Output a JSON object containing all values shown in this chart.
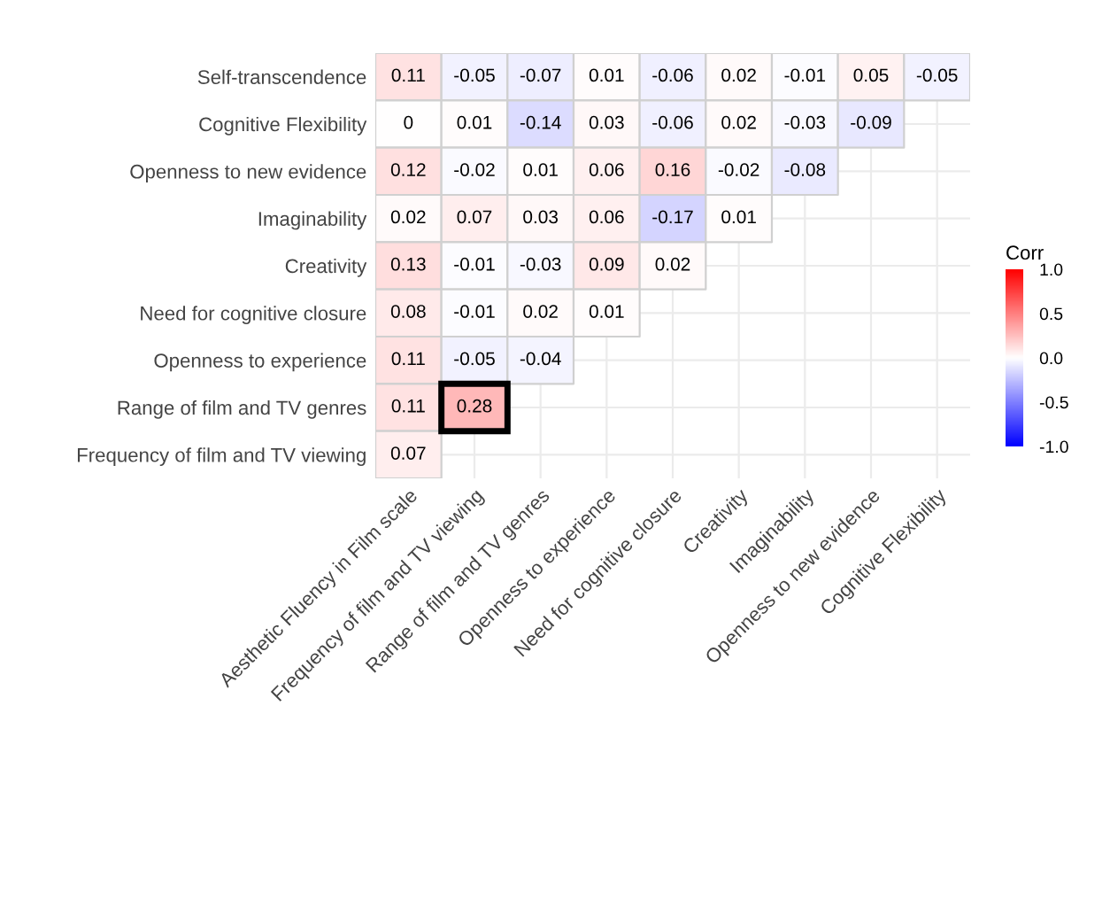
{
  "chart_data": {
    "type": "heatmap",
    "categories": [
      "Aesthetic Fluency in Film scale",
      "Frequency of film and TV viewing",
      "Range of film and TV genres",
      "Openness to experience",
      "Need for cognitive closure",
      "Creativity",
      "Imaginability",
      "Openness to new evidence",
      "Cognitive Flexibility"
    ],
    "y_categories": [
      "Self-transcendence",
      "Cognitive Flexibility",
      "Openness to new evidence",
      "Imaginability",
      "Creativity",
      "Need for cognitive closure",
      "Openness to experience",
      "Range of film and TV genres",
      "Frequency of film and TV viewing"
    ],
    "cells": [
      [
        0.11,
        -0.05,
        -0.07,
        0.01,
        -0.06,
        0.02,
        -0.01,
        0.05,
        -0.05
      ],
      [
        0,
        0.01,
        -0.14,
        0.03,
        -0.06,
        0.02,
        -0.03,
        -0.09,
        null
      ],
      [
        0.12,
        -0.02,
        0.01,
        0.06,
        0.16,
        -0.02,
        -0.08,
        null,
        null
      ],
      [
        0.02,
        0.07,
        0.03,
        0.06,
        -0.17,
        0.01,
        null,
        null,
        null
      ],
      [
        0.13,
        -0.01,
        -0.03,
        0.09,
        0.02,
        null,
        null,
        null,
        null
      ],
      [
        0.08,
        -0.01,
        0.02,
        0.01,
        null,
        null,
        null,
        null,
        null
      ],
      [
        0.11,
        -0.05,
        -0.04,
        null,
        null,
        null,
        null,
        null,
        null
      ],
      [
        0.11,
        0.28,
        null,
        null,
        null,
        null,
        null,
        null,
        null
      ],
      [
        0.07,
        null,
        null,
        null,
        null,
        null,
        null,
        null,
        null
      ]
    ],
    "clabel": "Corr",
    "clim": [
      -1,
      1
    ],
    "cticks": [
      {
        "value": -1,
        "label": "-1.0"
      },
      {
        "value": -0.5,
        "label": "-0.5"
      },
      {
        "value": 0,
        "label": "0.0"
      },
      {
        "value": 0.5,
        "label": "0.5"
      },
      {
        "value": 1,
        "label": "1.0"
      }
    ],
    "data_labels": true,
    "grid": true
  }
}
